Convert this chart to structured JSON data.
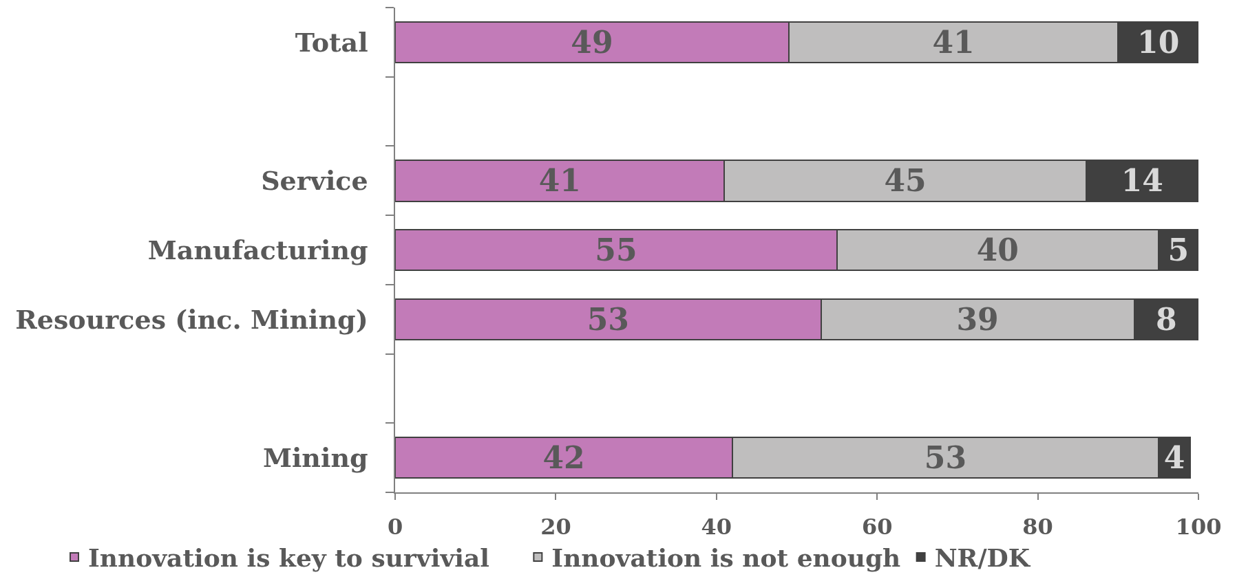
{
  "chart_data": {
    "type": "bar",
    "orientation": "horizontal",
    "stacked": true,
    "categories": [
      "Total",
      null,
      "Service",
      "Manufacturing",
      "Resources (inc. Mining)",
      null,
      "Mining"
    ],
    "series": [
      {
        "name": "Innovation is key to survivial",
        "color": "#c27bb8",
        "values": [
          49,
          null,
          41,
          55,
          53,
          null,
          42
        ]
      },
      {
        "name": "Innovation is not enough",
        "color": "#bfbebe",
        "values": [
          41,
          null,
          45,
          40,
          39,
          null,
          53
        ]
      },
      {
        "name": "NR/DK",
        "color": "#404040",
        "values": [
          10,
          null,
          14,
          5,
          8,
          null,
          4
        ]
      }
    ],
    "xlim": [
      0,
      100
    ],
    "xticks": [
      0,
      20,
      40,
      60,
      80,
      100
    ],
    "data_labels": true,
    "legend": "bottom"
  }
}
